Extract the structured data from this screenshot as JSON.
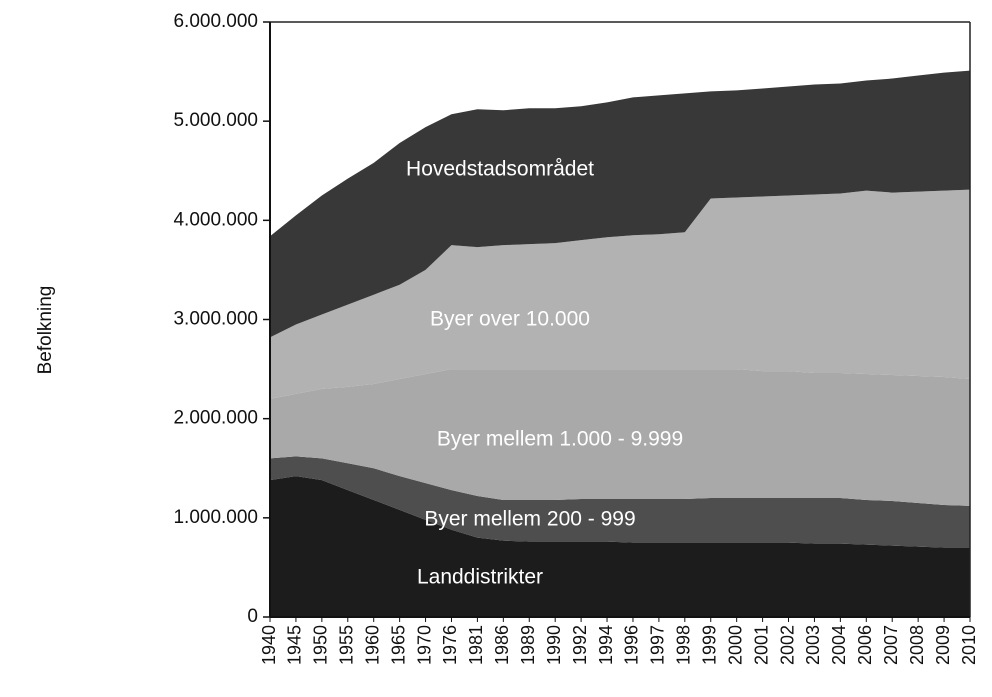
{
  "chart_data": {
    "type": "stacked_area",
    "y_label": "Befolkning",
    "categories": [
      "1940",
      "1945",
      "1950",
      "1955",
      "1960",
      "1965",
      "1970",
      "1976",
      "1981",
      "1986",
      "1989",
      "1990",
      "1992",
      "1994",
      "1996",
      "1997",
      "1998",
      "1999",
      "2000",
      "2001",
      "2002",
      "2003",
      "2004",
      "2006",
      "2007",
      "2008",
      "2009",
      "2010"
    ],
    "series": [
      {
        "name": "Landdistrikter",
        "color": "#1c1c1c",
        "values": [
          1380000,
          1420000,
          1380000,
          1280000,
          1180000,
          1080000,
          980000,
          880000,
          800000,
          770000,
          760000,
          760000,
          760000,
          760000,
          750000,
          750000,
          750000,
          750000,
          750000,
          750000,
          750000,
          740000,
          740000,
          730000,
          720000,
          710000,
          700000,
          700000
        ]
      },
      {
        "name": "Byer mellem 200 - 999",
        "color": "#4e4e4e",
        "values": [
          220000,
          200000,
          220000,
          270000,
          320000,
          340000,
          370000,
          400000,
          420000,
          410000,
          420000,
          420000,
          430000,
          430000,
          440000,
          440000,
          440000,
          450000,
          450000,
          450000,
          450000,
          460000,
          460000,
          450000,
          450000,
          440000,
          430000,
          420000
        ]
      },
      {
        "name": "Byer mellem 1.000 - 9.999",
        "color": "#a9a9a9",
        "values": [
          600000,
          630000,
          700000,
          770000,
          850000,
          980000,
          1100000,
          1220000,
          1280000,
          1320000,
          1320000,
          1320000,
          1310000,
          1310000,
          1310000,
          1310000,
          1310000,
          1300000,
          1300000,
          1280000,
          1280000,
          1260000,
          1260000,
          1270000,
          1270000,
          1280000,
          1290000,
          1280000
        ]
      },
      {
        "name": "Byer over 10.000",
        "color": "#b2b2b2",
        "values": [
          620000,
          700000,
          750000,
          830000,
          900000,
          950000,
          1050000,
          1250000,
          1230000,
          1250000,
          1260000,
          1270000,
          1300000,
          1330000,
          1350000,
          1360000,
          1380000,
          1720000,
          1730000,
          1760000,
          1770000,
          1800000,
          1810000,
          1850000,
          1840000,
          1860000,
          1880000,
          1910000
        ]
      },
      {
        "name": "Hovedstadsområdet",
        "color": "#383838",
        "values": [
          1020000,
          1100000,
          1200000,
          1270000,
          1330000,
          1430000,
          1440000,
          1320000,
          1390000,
          1360000,
          1370000,
          1360000,
          1350000,
          1360000,
          1390000,
          1400000,
          1400000,
          1080000,
          1080000,
          1090000,
          1100000,
          1110000,
          1110000,
          1110000,
          1150000,
          1170000,
          1190000,
          1200000
        ]
      }
    ],
    "ylim": [
      0,
      6000000
    ],
    "yticks": [
      0,
      {
        "value": 1000000,
        "label": "1.000.000"
      },
      {
        "value": 2000000,
        "label": "2.000.000"
      },
      {
        "value": 3000000,
        "label": "3.000.000"
      },
      {
        "value": 4000000,
        "label": "4.000.000"
      },
      {
        "value": 5000000,
        "label": "5.000.000"
      },
      {
        "value": 6000000,
        "label": "6.000.000"
      }
    ]
  }
}
